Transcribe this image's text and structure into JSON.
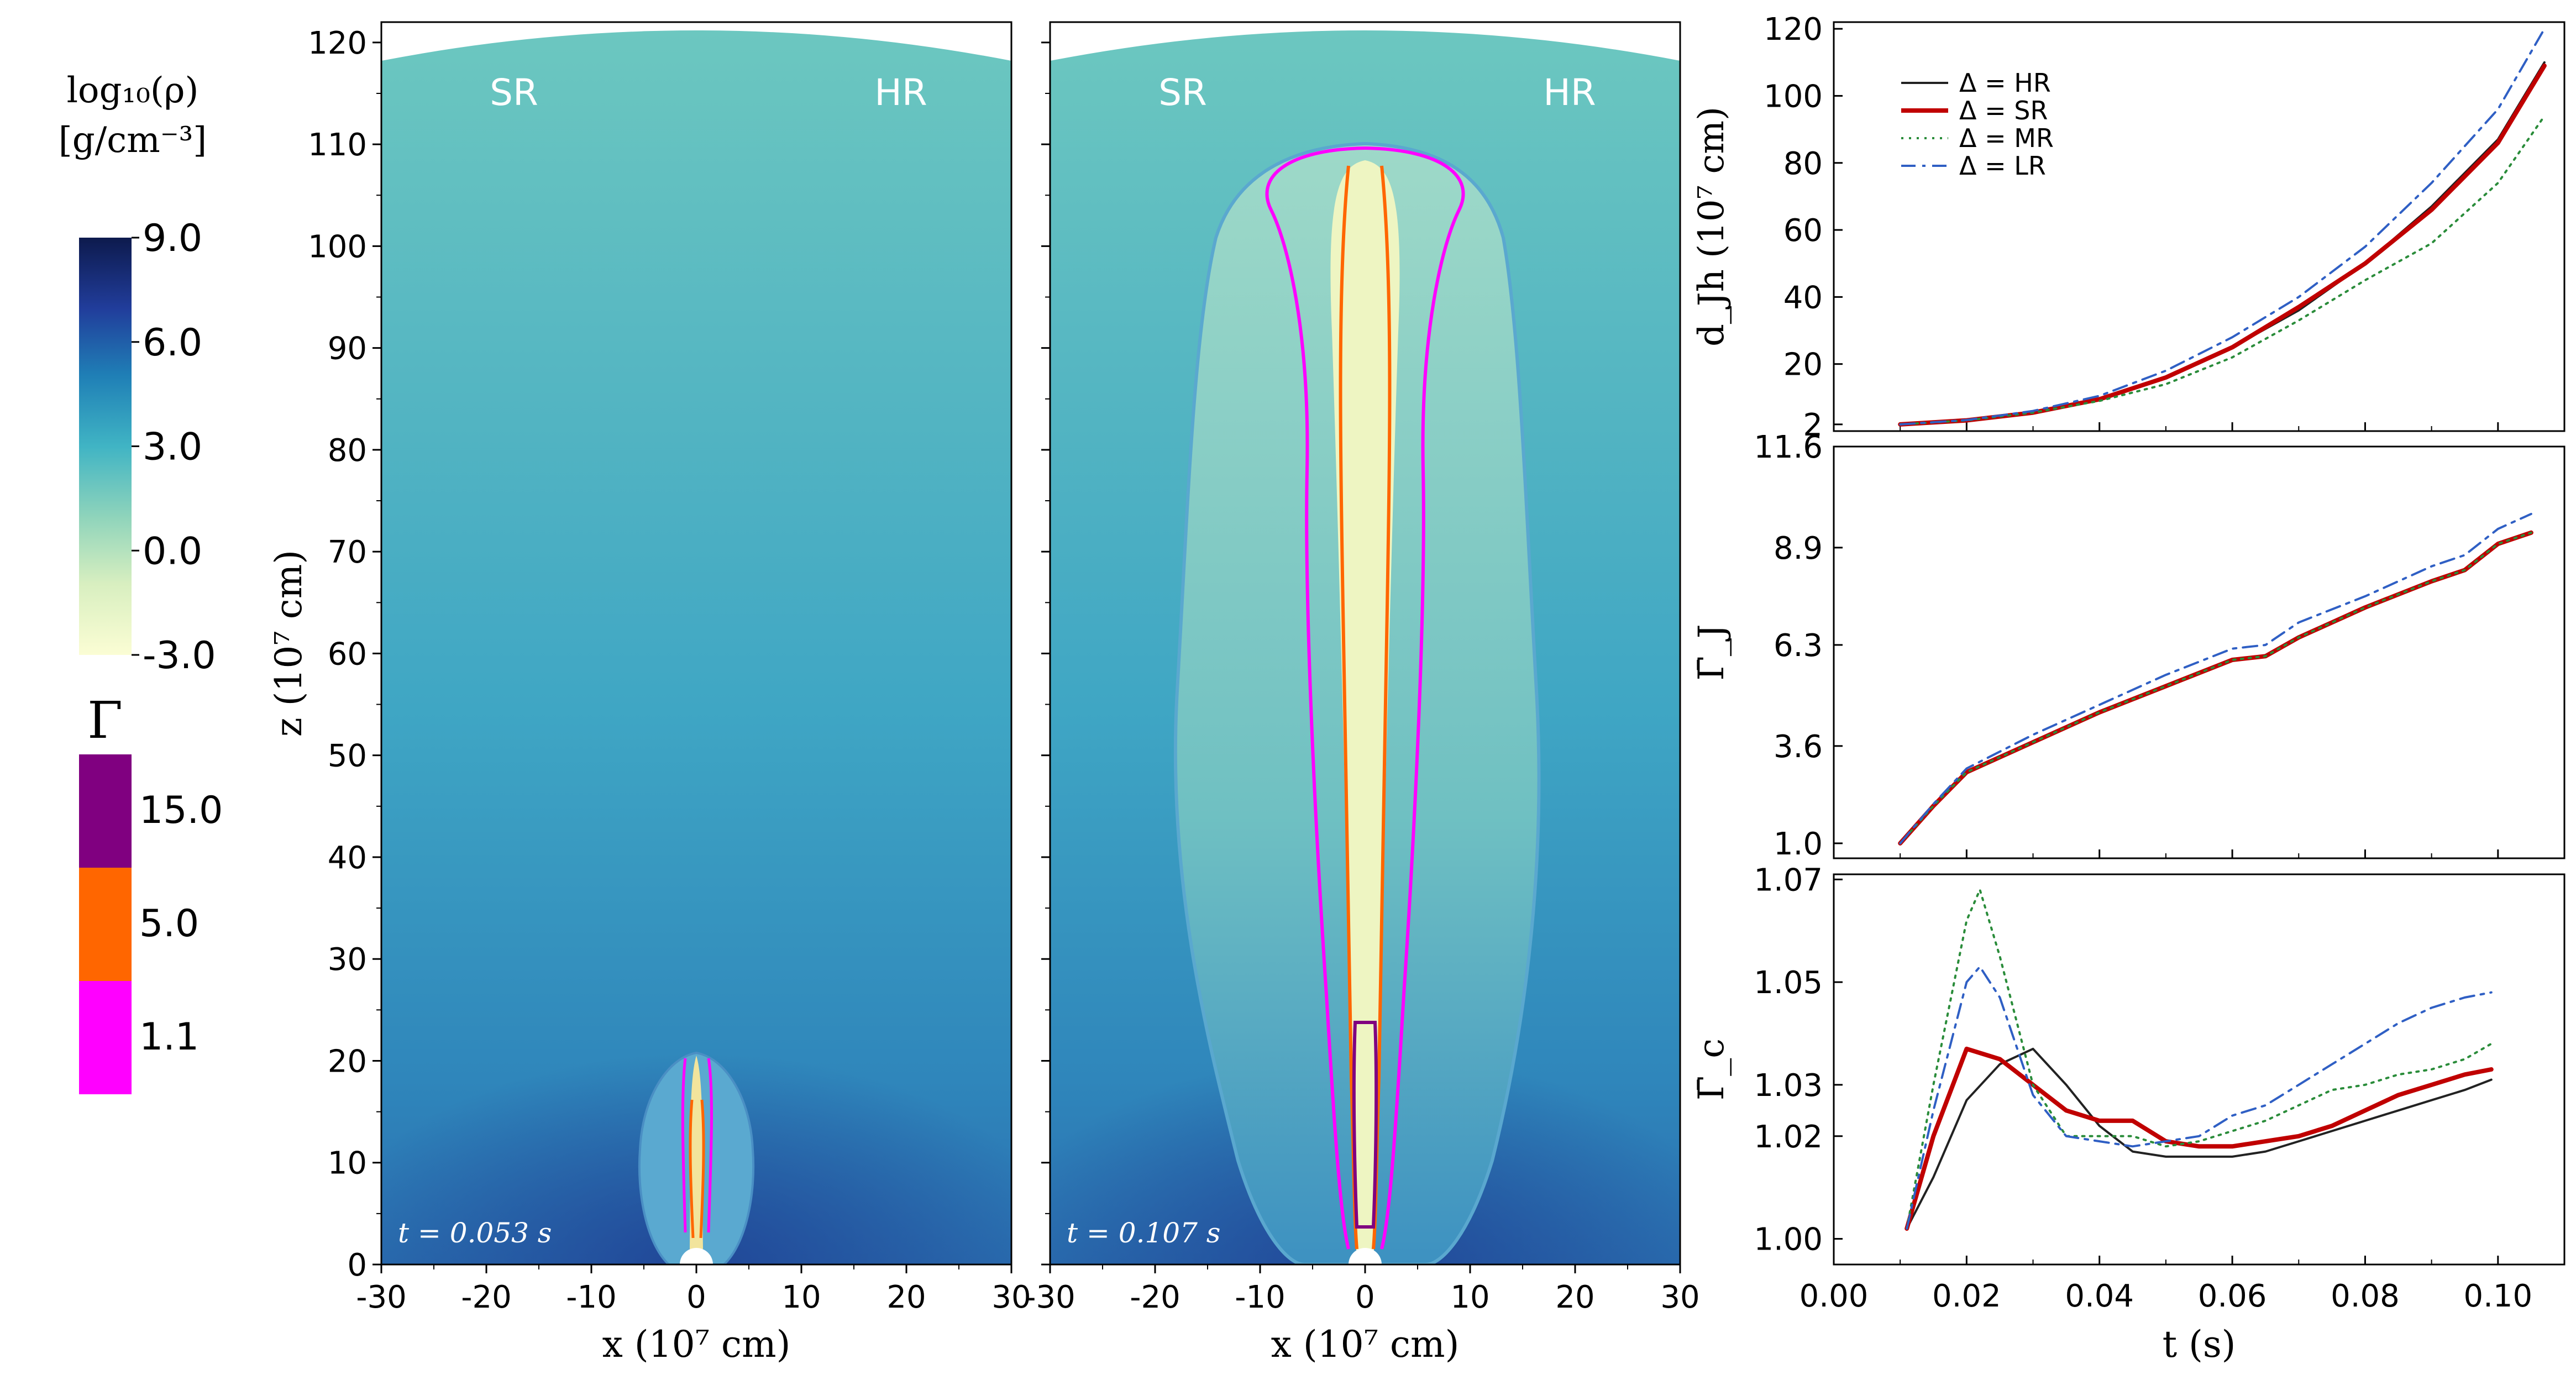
{
  "colorbar": {
    "density_label_line1": "log₁₀(ρ)",
    "density_label_line2": "[g/cm⁻³]",
    "density_ticks": [
      "9.0",
      "6.0",
      "3.0",
      "0.0",
      "-3.0"
    ],
    "density_colors": [
      "#0d1a4d",
      "#213d9b",
      "#1f7fb6",
      "#40b4c4",
      "#8fd4bb",
      "#d8efc0",
      "#fbfdd4"
    ],
    "gamma_label": "Γ",
    "gamma_levels": [
      {
        "label": "15.0",
        "color": "#800080"
      },
      {
        "label": "5.0",
        "color": "#ff6600"
      },
      {
        "label": "1.1",
        "color": "#ff00ff"
      }
    ]
  },
  "panels": [
    {
      "key": "left",
      "time_label": "t = 0.053 s",
      "corner_left": "SR",
      "corner_right": "HR"
    },
    {
      "key": "right",
      "time_label": "t = 0.107 s",
      "corner_left": "SR",
      "corner_right": "HR"
    }
  ],
  "maps": {
    "xlabel": "x (10⁷ cm)",
    "ylabel": "z (10⁷ cm)",
    "x_ticks": [
      "-30",
      "-20",
      "-10",
      "0",
      "10",
      "20",
      "30"
    ],
    "z_ticks": [
      "0",
      "10",
      "20",
      "30",
      "40",
      "50",
      "60",
      "70",
      "80",
      "90",
      "100",
      "110",
      "120"
    ],
    "xlim": [
      -30,
      30
    ],
    "zlim": [
      0,
      122
    ],
    "colors": {
      "background_top": "#6cc7c0",
      "background_bottom": "#2a6fb0",
      "cocoon": "#9ed9c8",
      "jet_core": "#f3f6c5"
    }
  },
  "chart_data": [
    {
      "type": "line",
      "ylabel": "d_Jh (10⁷ cm)",
      "xlim": [
        0.0,
        0.11
      ],
      "ylim": [
        0,
        122
      ],
      "y_ticks": [
        "2",
        "20",
        "40",
        "60",
        "80",
        "100",
        "120"
      ],
      "series": [
        {
          "name": "Δ = HR",
          "color": "#222222",
          "dash": "solid",
          "x": [
            0.01,
            0.02,
            0.03,
            0.04,
            0.05,
            0.06,
            0.07,
            0.08,
            0.09,
            0.1,
            0.107
          ],
          "y": [
            2,
            3.2,
            5.5,
            9.3,
            16,
            25,
            36,
            50,
            67,
            87,
            110
          ]
        },
        {
          "name": "Δ = SR",
          "color": "#c00000",
          "dash": "solid",
          "x": [
            0.01,
            0.02,
            0.03,
            0.04,
            0.05,
            0.06,
            0.07,
            0.08,
            0.09,
            0.1,
            0.107
          ],
          "y": [
            2,
            3.2,
            5.5,
            9.5,
            16,
            25,
            37,
            50,
            66,
            86,
            109
          ]
        },
        {
          "name": "Δ = MR",
          "color": "#2a8c3a",
          "dash": "dotted",
          "x": [
            0.01,
            0.02,
            0.03,
            0.04,
            0.05,
            0.06,
            0.07,
            0.08,
            0.09,
            0.1,
            0.107
          ],
          "y": [
            2,
            3.2,
            5.5,
            9,
            14,
            22,
            33,
            45,
            56,
            74,
            94
          ]
        },
        {
          "name": "Δ = LR",
          "color": "#2f5fc4",
          "dash": "dashdot",
          "x": [
            0.01,
            0.02,
            0.03,
            0.04,
            0.05,
            0.06,
            0.07,
            0.08,
            0.09,
            0.1,
            0.107
          ],
          "y": [
            2,
            3.3,
            6,
            10.5,
            18,
            28,
            40,
            55,
            74,
            96,
            120
          ]
        }
      ]
    },
    {
      "type": "line",
      "ylabel": "Γ̄_J",
      "xlim": [
        0.0,
        0.11
      ],
      "ylim": [
        0.6,
        11.6
      ],
      "y_ticks": [
        "1.0",
        "3.6",
        "6.3",
        "8.9",
        "11.6"
      ],
      "series": [
        {
          "name": "Δ = HR",
          "color": "#222222",
          "dash": "solid",
          "x": [
            0.01,
            0.015,
            0.02,
            0.03,
            0.04,
            0.05,
            0.06,
            0.065,
            0.07,
            0.08,
            0.09,
            0.095,
            0.1,
            0.105
          ],
          "y": [
            1.0,
            2.0,
            2.9,
            3.7,
            4.5,
            5.2,
            5.9,
            6.0,
            6.5,
            7.3,
            8.0,
            8.3,
            9.0,
            9.3
          ]
        },
        {
          "name": "Δ = SR",
          "color": "#c00000",
          "dash": "solid",
          "x": [
            0.01,
            0.015,
            0.02,
            0.03,
            0.04,
            0.05,
            0.06,
            0.065,
            0.07,
            0.08,
            0.09,
            0.095,
            0.1,
            0.105
          ],
          "y": [
            1.0,
            2.0,
            2.9,
            3.7,
            4.5,
            5.2,
            5.9,
            6.0,
            6.5,
            7.3,
            8.0,
            8.3,
            9.0,
            9.3
          ]
        },
        {
          "name": "Δ = MR",
          "color": "#2a8c3a",
          "dash": "dotted",
          "x": [
            0.01,
            0.015,
            0.02,
            0.03,
            0.04,
            0.05,
            0.06,
            0.065,
            0.07,
            0.08,
            0.09,
            0.095,
            0.1,
            0.105
          ],
          "y": [
            1.0,
            2.0,
            2.9,
            3.7,
            4.5,
            5.2,
            5.9,
            6.0,
            6.5,
            7.3,
            8.0,
            8.3,
            9.0,
            9.3
          ]
        },
        {
          "name": "Δ = LR",
          "color": "#2f5fc4",
          "dash": "dashdot",
          "x": [
            0.01,
            0.015,
            0.02,
            0.03,
            0.04,
            0.05,
            0.06,
            0.065,
            0.07,
            0.08,
            0.09,
            0.095,
            0.1,
            0.105
          ],
          "y": [
            1.0,
            2.05,
            3.0,
            3.9,
            4.7,
            5.5,
            6.2,
            6.3,
            6.9,
            7.6,
            8.4,
            8.7,
            9.4,
            9.8
          ]
        }
      ]
    },
    {
      "type": "line",
      "xlabel": "t (s)",
      "ylabel": "Γ̄_c",
      "xlim": [
        0.0,
        0.11
      ],
      "ylim": [
        0.995,
        1.071
      ],
      "x_ticks": [
        "0.00",
        "0.02",
        "0.04",
        "0.06",
        "0.08",
        "0.10"
      ],
      "y_ticks": [
        "1.00",
        "1.02",
        "1.03",
        "1.05",
        "1.07"
      ],
      "series": [
        {
          "name": "Δ = HR",
          "color": "#222222",
          "dash": "solid",
          "x": [
            0.011,
            0.015,
            0.02,
            0.025,
            0.03,
            0.035,
            0.04,
            0.045,
            0.05,
            0.055,
            0.06,
            0.065,
            0.07,
            0.075,
            0.08,
            0.085,
            0.09,
            0.095,
            0.099
          ],
          "y": [
            1.002,
            1.012,
            1.027,
            1.034,
            1.037,
            1.03,
            1.022,
            1.017,
            1.016,
            1.016,
            1.016,
            1.017,
            1.019,
            1.021,
            1.023,
            1.025,
            1.027,
            1.029,
            1.031
          ]
        },
        {
          "name": "Δ = SR",
          "color": "#c00000",
          "dash": "solid",
          "x": [
            0.011,
            0.015,
            0.02,
            0.025,
            0.03,
            0.035,
            0.04,
            0.045,
            0.05,
            0.055,
            0.06,
            0.065,
            0.07,
            0.075,
            0.08,
            0.085,
            0.09,
            0.095,
            0.099
          ],
          "y": [
            1.002,
            1.02,
            1.037,
            1.035,
            1.03,
            1.025,
            1.023,
            1.023,
            1.019,
            1.018,
            1.018,
            1.019,
            1.02,
            1.022,
            1.025,
            1.028,
            1.03,
            1.032,
            1.033
          ]
        },
        {
          "name": "Δ = MR",
          "color": "#2a8c3a",
          "dash": "dotted",
          "x": [
            0.011,
            0.015,
            0.02,
            0.022,
            0.025,
            0.03,
            0.035,
            0.04,
            0.045,
            0.05,
            0.055,
            0.06,
            0.065,
            0.07,
            0.075,
            0.08,
            0.085,
            0.09,
            0.095,
            0.099
          ],
          "y": [
            1.002,
            1.03,
            1.062,
            1.068,
            1.055,
            1.03,
            1.02,
            1.02,
            1.02,
            1.018,
            1.019,
            1.021,
            1.023,
            1.026,
            1.029,
            1.03,
            1.032,
            1.033,
            1.035,
            1.038
          ]
        },
        {
          "name": "Δ = LR",
          "color": "#2f5fc4",
          "dash": "dashdot",
          "x": [
            0.011,
            0.015,
            0.02,
            0.022,
            0.025,
            0.03,
            0.035,
            0.04,
            0.045,
            0.05,
            0.055,
            0.06,
            0.065,
            0.07,
            0.075,
            0.08,
            0.085,
            0.09,
            0.095,
            0.099
          ],
          "y": [
            1.002,
            1.025,
            1.05,
            1.053,
            1.047,
            1.028,
            1.02,
            1.019,
            1.018,
            1.019,
            1.02,
            1.024,
            1.026,
            1.03,
            1.034,
            1.038,
            1.042,
            1.045,
            1.047,
            1.048
          ]
        }
      ]
    }
  ]
}
